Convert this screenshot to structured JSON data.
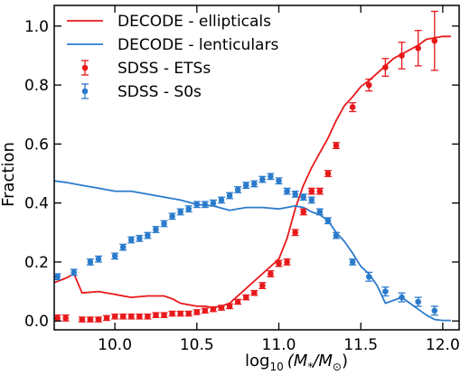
{
  "chart_data": {
    "type": "line",
    "xlabel": "log10(M*/M⊙)",
    "xlabel_parts": {
      "base": "log",
      "sub": "10",
      "arg": "(M",
      "arg_sub1": "*",
      "mid": "/M",
      "arg_sub2": "⊙",
      "close": ")"
    },
    "ylabel": "Fraction",
    "xlim": [
      9.63,
      12.1
    ],
    "ylim": [
      -0.03,
      1.07
    ],
    "xticks": [
      10.0,
      10.5,
      11.0,
      11.5,
      12.0
    ],
    "xtick_labels": [
      "10.0",
      "10.5",
      "11.0",
      "11.5",
      "12.0"
    ],
    "yticks": [
      0.0,
      0.2,
      0.4,
      0.6,
      0.8,
      1.0
    ],
    "ytick_labels": [
      "0.0",
      "0.2",
      "0.4",
      "0.6",
      "0.8",
      "1.0"
    ],
    "grid": false,
    "legend_position": "top-left",
    "series": [
      {
        "name": "DECODE - ellipticals",
        "kind": "line",
        "color": "#e8191b",
        "x": [
          9.63,
          9.7,
          9.75,
          9.8,
          9.9,
          10.0,
          10.1,
          10.2,
          10.3,
          10.35,
          10.4,
          10.45,
          10.5,
          10.55,
          10.6,
          10.65,
          10.7,
          10.8,
          10.9,
          11.0,
          11.05,
          11.1,
          11.15,
          11.2,
          11.25,
          11.3,
          11.35,
          11.4,
          11.45,
          11.5,
          11.55,
          11.6,
          11.65,
          11.7,
          11.75,
          11.8,
          11.85,
          11.9,
          11.95,
          12.0,
          12.05
        ],
        "y": [
          0.13,
          0.145,
          0.16,
          0.095,
          0.1,
          0.09,
          0.08,
          0.085,
          0.085,
          0.075,
          0.06,
          0.055,
          0.05,
          0.05,
          0.045,
          0.05,
          0.06,
          0.11,
          0.16,
          0.21,
          0.28,
          0.38,
          0.46,
          0.52,
          0.57,
          0.62,
          0.68,
          0.73,
          0.76,
          0.795,
          0.815,
          0.84,
          0.865,
          0.89,
          0.905,
          0.92,
          0.935,
          0.955,
          0.96,
          0.965,
          0.965
        ]
      },
      {
        "name": "DECODE - lenticulars",
        "kind": "line",
        "color": "#2b7bcc",
        "x": [
          9.63,
          9.7,
          9.8,
          9.9,
          10.0,
          10.1,
          10.2,
          10.3,
          10.4,
          10.5,
          10.6,
          10.7,
          10.8,
          10.9,
          11.0,
          11.1,
          11.15,
          11.2,
          11.25,
          11.3,
          11.35,
          11.4,
          11.45,
          11.5,
          11.55,
          11.6,
          11.65,
          11.7,
          11.75,
          11.8,
          11.85,
          11.9,
          11.95,
          12.0,
          12.05
        ],
        "y": [
          0.475,
          0.47,
          0.46,
          0.45,
          0.44,
          0.44,
          0.43,
          0.42,
          0.41,
          0.395,
          0.39,
          0.375,
          0.385,
          0.385,
          0.38,
          0.39,
          0.385,
          0.37,
          0.36,
          0.34,
          0.3,
          0.27,
          0.23,
          0.185,
          0.16,
          0.12,
          0.06,
          0.07,
          0.08,
          0.06,
          0.04,
          0.02,
          0.005,
          0.002,
          0.002
        ]
      },
      {
        "name": "SDSS - ETSs",
        "kind": "errorbar",
        "color": "#e8191b",
        "x": [
          9.65,
          9.7,
          9.8,
          9.85,
          9.9,
          9.95,
          10.0,
          10.05,
          10.1,
          10.15,
          10.2,
          10.25,
          10.3,
          10.35,
          10.4,
          10.45,
          10.5,
          10.55,
          10.6,
          10.65,
          10.7,
          10.75,
          10.8,
          10.85,
          10.9,
          10.95,
          11.0,
          11.05,
          11.1,
          11.15,
          11.2,
          11.25,
          11.3,
          11.35,
          11.45,
          11.55,
          11.65,
          11.75,
          11.85,
          11.95
        ],
        "y": [
          0.01,
          0.01,
          0.005,
          0.005,
          0.005,
          0.01,
          0.015,
          0.015,
          0.015,
          0.015,
          0.015,
          0.02,
          0.02,
          0.025,
          0.025,
          0.025,
          0.03,
          0.035,
          0.04,
          0.045,
          0.05,
          0.065,
          0.08,
          0.095,
          0.12,
          0.16,
          0.195,
          0.2,
          0.3,
          0.37,
          0.44,
          0.44,
          0.5,
          0.595,
          0.725,
          0.8,
          0.86,
          0.9,
          0.925,
          0.95
        ],
        "err": [
          0.01,
          0.01,
          0.008,
          0.008,
          0.008,
          0.008,
          0.008,
          0.008,
          0.008,
          0.008,
          0.008,
          0.008,
          0.008,
          0.008,
          0.008,
          0.008,
          0.008,
          0.008,
          0.008,
          0.008,
          0.008,
          0.008,
          0.008,
          0.008,
          0.01,
          0.01,
          0.01,
          0.01,
          0.01,
          0.01,
          0.01,
          0.01,
          0.01,
          0.01,
          0.015,
          0.02,
          0.03,
          0.045,
          0.06,
          0.1
        ]
      },
      {
        "name": "SDSS - S0s",
        "kind": "errorbar",
        "color": "#2b7bcc",
        "x": [
          9.65,
          9.75,
          9.85,
          9.9,
          10.0,
          10.05,
          10.1,
          10.15,
          10.2,
          10.25,
          10.3,
          10.35,
          10.4,
          10.45,
          10.5,
          10.55,
          10.6,
          10.65,
          10.7,
          10.75,
          10.8,
          10.85,
          10.9,
          10.95,
          11.0,
          11.05,
          11.1,
          11.15,
          11.2,
          11.25,
          11.3,
          11.35,
          11.45,
          11.55,
          11.65,
          11.75,
          11.85,
          11.95
        ],
        "y": [
          0.15,
          0.165,
          0.2,
          0.21,
          0.22,
          0.25,
          0.275,
          0.28,
          0.29,
          0.31,
          0.33,
          0.355,
          0.37,
          0.38,
          0.395,
          0.395,
          0.4,
          0.41,
          0.425,
          0.445,
          0.46,
          0.465,
          0.48,
          0.49,
          0.475,
          0.44,
          0.43,
          0.42,
          0.41,
          0.37,
          0.34,
          0.29,
          0.2,
          0.15,
          0.1,
          0.08,
          0.065,
          0.035
        ],
        "err": [
          0.01,
          0.01,
          0.01,
          0.01,
          0.01,
          0.01,
          0.01,
          0.01,
          0.01,
          0.01,
          0.01,
          0.01,
          0.01,
          0.01,
          0.01,
          0.01,
          0.01,
          0.01,
          0.01,
          0.01,
          0.01,
          0.01,
          0.01,
          0.01,
          0.01,
          0.01,
          0.01,
          0.01,
          0.01,
          0.01,
          0.01,
          0.01,
          0.01,
          0.015,
          0.015,
          0.015,
          0.015,
          0.015
        ]
      }
    ]
  }
}
